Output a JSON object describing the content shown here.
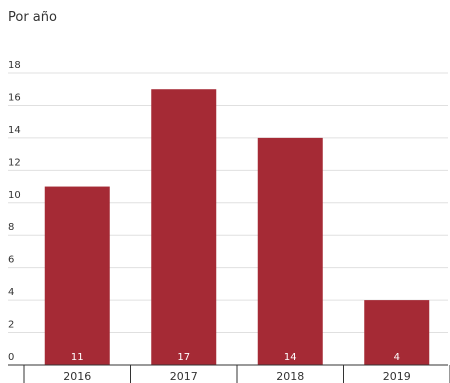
{
  "chart_data": {
    "type": "bar",
    "title": "Por año",
    "xlabel": "",
    "ylabel": "",
    "categories": [
      "2016",
      "2017",
      "2018",
      "2019"
    ],
    "values": [
      11,
      17,
      14,
      4
    ],
    "ylim": [
      0,
      18
    ],
    "yticks": [
      0,
      2,
      4,
      6,
      8,
      10,
      12,
      14,
      16,
      18
    ],
    "grid": true,
    "bar_color": "#a52a35",
    "grid_color": "#e0e0e0",
    "axis_color": "#333333"
  }
}
